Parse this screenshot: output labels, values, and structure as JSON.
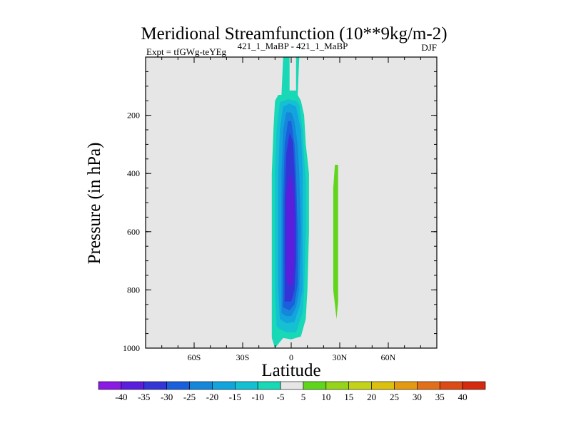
{
  "chart_data": {
    "type": "contour",
    "title": "Meridional Streamfunction (10**9kg/m-2)",
    "subtitle_left": "Expt = tfGWg-teYEg",
    "subtitle_center": "421_1_MaBP - 421_1_MaBP",
    "subtitle_right": "DJF",
    "xlabel": "Latitude",
    "ylabel": "Pressure (in hPa)",
    "xlim": [
      -90,
      90
    ],
    "ylim": [
      1000,
      0
    ],
    "x_ticks": [
      {
        "value": -60,
        "label": "60S"
      },
      {
        "value": -30,
        "label": "30S"
      },
      {
        "value": 0,
        "label": "0"
      },
      {
        "value": 30,
        "label": "30N"
      },
      {
        "value": 60,
        "label": "60N"
      }
    ],
    "y_ticks": [
      {
        "value": 200,
        "label": "200"
      },
      {
        "value": 400,
        "label": "400"
      },
      {
        "value": 600,
        "label": "600"
      },
      {
        "value": 800,
        "label": "800"
      },
      {
        "value": 1000,
        "label": "1000"
      }
    ],
    "background_color": "#e6e6e6",
    "colorbar": {
      "labels": [
        "-40",
        "-35",
        "-30",
        "-25",
        "-20",
        "-15",
        "-10",
        "-5",
        "5",
        "10",
        "15",
        "20",
        "25",
        "30",
        "35",
        "40"
      ],
      "colors": [
        "#8a1be3",
        "#5a1fdc",
        "#3435d6",
        "#1a5fdc",
        "#1586da",
        "#12a4dc",
        "#14c0d2",
        "#18d8b6",
        "#e6e6e6",
        "#5fd61c",
        "#95d418",
        "#c4d21a",
        "#dcc010",
        "#e49a10",
        "#e2701a",
        "#dc4a16",
        "#d42a0e"
      ]
    },
    "filled_contours": [
      {
        "name": "negative-cell-level-5",
        "value": -5,
        "color": "#18d8b6",
        "points": [
          [
            -10,
            1000
          ],
          [
            -12,
            965
          ],
          [
            -12,
            800
          ],
          [
            -12,
            600
          ],
          [
            -12,
            400
          ],
          [
            -11,
            250
          ],
          [
            -10,
            150
          ],
          [
            -8,
            130
          ],
          [
            -6,
            130
          ],
          [
            -5,
            0
          ],
          [
            -1,
            0
          ],
          [
            -1,
            115
          ],
          [
            3,
            115
          ],
          [
            3,
            0
          ],
          [
            5,
            0
          ],
          [
            4,
            130
          ],
          [
            6,
            150
          ],
          [
            8,
            200
          ],
          [
            9,
            300
          ],
          [
            10,
            350
          ],
          [
            11,
            400
          ],
          [
            11,
            600
          ],
          [
            10,
            800
          ],
          [
            9,
            900
          ],
          [
            6,
            960
          ],
          [
            0,
            970
          ],
          [
            -5,
            965
          ]
        ]
      },
      {
        "name": "negative-cell-level-10",
        "value": -10,
        "color": "#14c0d2",
        "points": [
          [
            -9,
            925
          ],
          [
            -10,
            800
          ],
          [
            -10,
            600
          ],
          [
            -10,
            400
          ],
          [
            -9,
            250
          ],
          [
            -7,
            155
          ],
          [
            -2,
            145
          ],
          [
            3,
            150
          ],
          [
            5,
            165
          ],
          [
            7,
            250
          ],
          [
            8,
            350
          ],
          [
            9,
            420
          ],
          [
            9,
            600
          ],
          [
            8,
            800
          ],
          [
            7,
            880
          ],
          [
            3,
            945
          ],
          [
            -3,
            945
          ],
          [
            -7,
            935
          ]
        ]
      },
      {
        "name": "negative-cell-level-15",
        "value": -15,
        "color": "#12a4dc",
        "points": [
          [
            -7,
            900
          ],
          [
            -8,
            800
          ],
          [
            -8,
            600
          ],
          [
            -8,
            400
          ],
          [
            -7,
            250
          ],
          [
            -5,
            170
          ],
          [
            -1,
            160
          ],
          [
            3,
            170
          ],
          [
            6,
            250
          ],
          [
            7,
            380
          ],
          [
            7,
            600
          ],
          [
            7,
            800
          ],
          [
            5,
            860
          ],
          [
            2,
            910
          ],
          [
            -3,
            915
          ]
        ]
      },
      {
        "name": "negative-cell-level-20",
        "value": -20,
        "color": "#1586da",
        "points": [
          [
            -6,
            880
          ],
          [
            -6,
            800
          ],
          [
            -6,
            600
          ],
          [
            -6,
            400
          ],
          [
            -5,
            250
          ],
          [
            -3,
            190
          ],
          [
            0,
            190
          ],
          [
            2,
            220
          ],
          [
            4,
            300
          ],
          [
            5,
            400
          ],
          [
            6,
            600
          ],
          [
            5,
            800
          ],
          [
            3,
            860
          ],
          [
            0,
            890
          ],
          [
            -3,
            890
          ]
        ]
      },
      {
        "name": "negative-cell-level-25",
        "value": -25,
        "color": "#1a5fdc",
        "points": [
          [
            -5,
            860
          ],
          [
            -5,
            700
          ],
          [
            -5,
            500
          ],
          [
            -4,
            300
          ],
          [
            -2,
            220
          ],
          [
            0,
            220
          ],
          [
            2,
            300
          ],
          [
            3,
            400
          ],
          [
            4,
            600
          ],
          [
            4,
            780
          ],
          [
            2,
            850
          ],
          [
            -1,
            870
          ]
        ]
      },
      {
        "name": "negative-cell-level-30",
        "value": -30,
        "color": "#3435d6",
        "points": [
          [
            -4,
            840
          ],
          [
            -4,
            700
          ],
          [
            -4,
            500
          ],
          [
            -3,
            330
          ],
          [
            -1,
            260
          ],
          [
            1,
            290
          ],
          [
            2,
            380
          ],
          [
            3,
            550
          ],
          [
            3,
            700
          ],
          [
            2,
            800
          ],
          [
            0,
            840
          ]
        ]
      },
      {
        "name": "negative-cell-level-35",
        "value": -35,
        "color": "#5a1fdc",
        "points": [
          [
            -3,
            760
          ],
          [
            -3,
            600
          ],
          [
            -3,
            470
          ],
          [
            -1,
            400
          ],
          [
            1,
            430
          ],
          [
            2,
            520
          ],
          [
            2,
            680
          ],
          [
            1,
            780
          ],
          [
            -1,
            790
          ]
        ]
      },
      {
        "name": "positive-cell-level-10",
        "value": 10,
        "color": "#5fd61c",
        "points": [
          [
            28,
            900
          ],
          [
            26,
            800
          ],
          [
            26,
            600
          ],
          [
            26,
            450
          ],
          [
            27,
            370
          ],
          [
            29,
            370
          ],
          [
            29,
            500
          ],
          [
            29,
            700
          ],
          [
            29,
            840
          ]
        ]
      }
    ]
  }
}
